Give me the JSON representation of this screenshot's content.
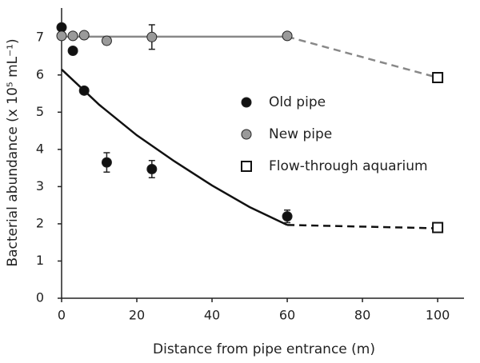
{
  "chart_data": {
    "type": "scatter",
    "x_label": "Distance from pipe entrance (m)",
    "y_label": "Bacterial abundance (x 10⁵ mL⁻¹)",
    "xlim": [
      0,
      107
    ],
    "ylim": [
      0,
      7.8
    ],
    "xticks": [
      0,
      20,
      40,
      60,
      80,
      100
    ],
    "yticks": [
      0,
      1,
      2,
      3,
      4,
      5,
      6,
      7
    ],
    "legend": "right",
    "series": [
      {
        "name": "Old pipe",
        "color": "#111111",
        "marker": "circle",
        "x": [
          0,
          3,
          6,
          12,
          24,
          60
        ],
        "values": [
          7.28,
          6.65,
          5.58,
          3.65,
          3.47,
          2.2
        ],
        "errors": [
          null,
          null,
          null,
          0.26,
          0.23,
          0.17
        ]
      },
      {
        "name": "New pipe",
        "color": "#9a9a9a",
        "marker": "circle",
        "x": [
          0,
          3,
          6,
          12,
          24,
          60
        ],
        "values": [
          7.05,
          7.05,
          7.07,
          6.92,
          7.02,
          7.05
        ],
        "errors": [
          null,
          null,
          null,
          0.1,
          0.33,
          null
        ]
      },
      {
        "name": "Flow-through aquarium",
        "color": "#ffffff",
        "marker": "square",
        "x": [
          100,
          100
        ],
        "values": [
          5.93,
          1.9
        ],
        "errors": [
          null,
          null
        ]
      }
    ],
    "lines": [
      {
        "color": "#111111",
        "dashed": false,
        "x": [
          0,
          10,
          20,
          30,
          40,
          50,
          60
        ],
        "values": [
          6.15,
          5.2,
          4.38,
          3.68,
          3.03,
          2.45,
          1.97
        ]
      },
      {
        "color": "#111111",
        "dashed": true,
        "x": [
          60,
          100
        ],
        "values": [
          1.97,
          1.88
        ]
      },
      {
        "color": "#888888",
        "dashed": false,
        "x": [
          0,
          60
        ],
        "values": [
          7.03,
          7.03
        ]
      },
      {
        "color": "#888888",
        "dashed": true,
        "x": [
          60,
          100
        ],
        "values": [
          7.03,
          5.93
        ]
      }
    ]
  }
}
